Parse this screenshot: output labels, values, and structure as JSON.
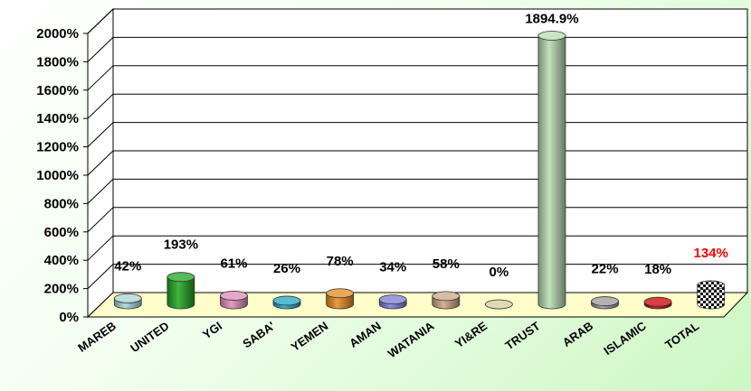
{
  "chart_data": {
    "type": "bar",
    "title": "",
    "xlabel": "",
    "ylabel": "",
    "categories": [
      "MAREB",
      "UNITED",
      "YGI",
      "SABA'",
      "YEMEN",
      "AMAN",
      "WATANIA",
      "YI&RE",
      "TRUST",
      "ARAB",
      "ISLAMIC",
      "TOTAL"
    ],
    "values": [
      42,
      193,
      61,
      26,
      78,
      34,
      58,
      0,
      1894.9,
      22,
      18,
      134
    ],
    "data_labels": [
      "42%",
      "193%",
      "61%",
      "26%",
      "78%",
      "34%",
      "58%",
      "0%",
      "1894.9%",
      "22%",
      "18%",
      "134%"
    ],
    "y_ticks": [
      "0%",
      "200%",
      "400%",
      "600%",
      "800%",
      "1000%",
      "1200%",
      "1400%",
      "1600%",
      "1800%",
      "2000%"
    ],
    "ylim": [
      0,
      2000
    ],
    "grid": true,
    "legend": "none",
    "colors": [
      "#a9d3d3",
      "#1fa51f",
      "#e08ab8",
      "#1fa6c2",
      "#e88a1e",
      "#7b7bd6",
      "#cba583",
      "#d6cf9a",
      "#b8dcb0",
      "#9a9a9a",
      "#cc0000",
      "#222222"
    ],
    "highlight_label_color": "#ff0000",
    "highlight_category": "TOTAL"
  }
}
